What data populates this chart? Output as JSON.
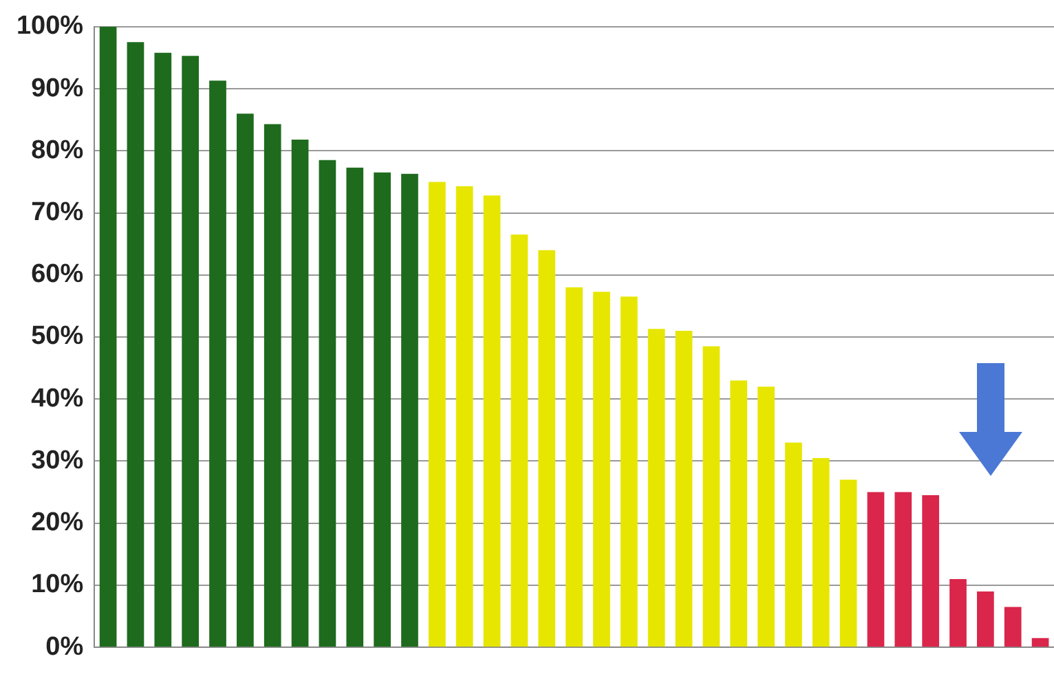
{
  "chart_data": {
    "type": "bar",
    "categories": [
      null,
      null,
      null,
      null,
      null,
      null,
      null,
      null,
      null,
      null,
      null,
      null,
      null,
      null,
      null,
      null,
      null,
      null,
      null,
      null,
      null,
      null,
      null,
      null,
      null,
      null,
      null,
      null,
      null,
      null,
      null,
      null,
      null,
      null,
      null
    ],
    "values": [
      100,
      97.5,
      95.8,
      95.3,
      91.3,
      86,
      84.3,
      81.8,
      78.5,
      77.3,
      76.5,
      76.3,
      75,
      74.3,
      72.8,
      66.5,
      64,
      58,
      57.3,
      56.5,
      51.3,
      51,
      48.5,
      43,
      42,
      33,
      30.5,
      27,
      25,
      25,
      24.5,
      11,
      9,
      6.5,
      1.5
    ],
    "colors": [
      "#1e6b1e",
      "#1e6b1e",
      "#1e6b1e",
      "#1e6b1e",
      "#1e6b1e",
      "#1e6b1e",
      "#1e6b1e",
      "#1e6b1e",
      "#1e6b1e",
      "#1e6b1e",
      "#1e6b1e",
      "#1e6b1e",
      "#e6e600",
      "#e6e600",
      "#e6e600",
      "#e6e600",
      "#e6e600",
      "#e6e600",
      "#e6e600",
      "#e6e600",
      "#e6e600",
      "#e6e600",
      "#e6e600",
      "#e6e600",
      "#e6e600",
      "#e6e600",
      "#e6e600",
      "#e6e600",
      "#d9264a",
      "#d9264a",
      "#d9264a",
      "#d9264a",
      "#d9264a",
      "#d9264a",
      "#d9264a"
    ],
    "ylim": [
      0,
      100
    ],
    "yticks": [
      {
        "value": 0,
        "label": "0%"
      },
      {
        "value": 10,
        "label": "10%"
      },
      {
        "value": 20,
        "label": "20%"
      },
      {
        "value": 30,
        "label": "30%"
      },
      {
        "value": 40,
        "label": "40%"
      },
      {
        "value": 50,
        "label": "50%"
      },
      {
        "value": 60,
        "label": "60%"
      },
      {
        "value": 70,
        "label": "70%"
      },
      {
        "value": 80,
        "label": "80%"
      },
      {
        "value": 90,
        "label": "90%"
      },
      {
        "value": 100,
        "label": "100%"
      }
    ],
    "grid": "y",
    "tick_labels": "y",
    "legend": false
  }
}
